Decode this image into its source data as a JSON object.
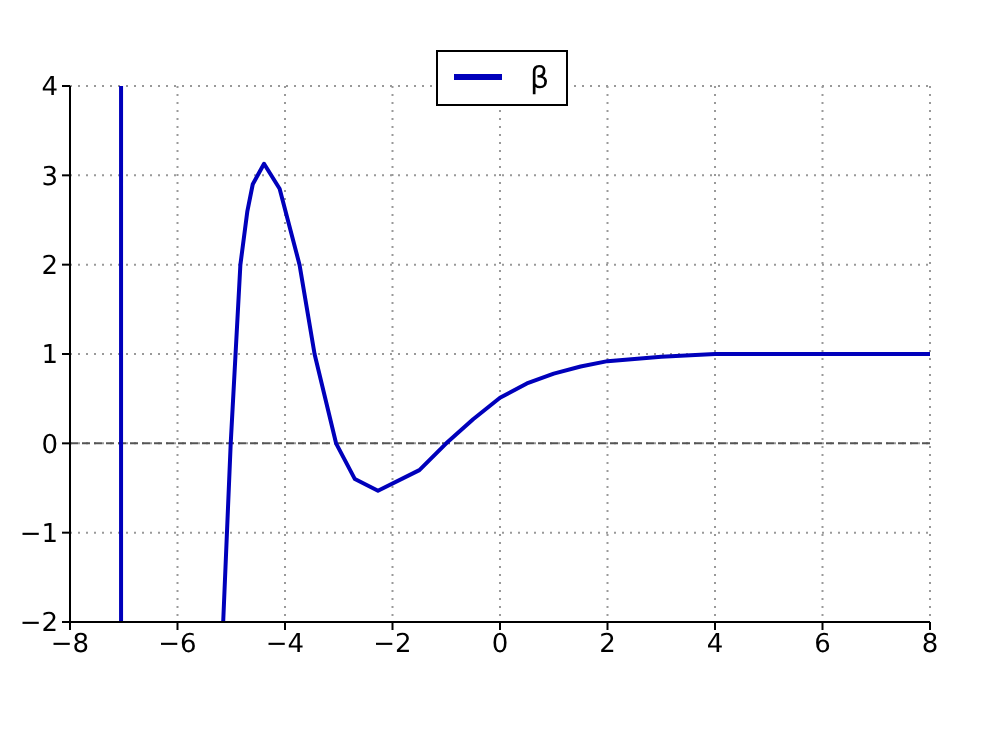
{
  "chart_data": {
    "type": "line",
    "x": [
      -7.05,
      -7.05,
      -6,
      -5.15,
      -5.01,
      -4.92,
      -4.83,
      -4.7,
      -4.6,
      -4.39,
      -4.1,
      -3.73,
      -3.45,
      -3.05,
      -2.7,
      -2.27,
      -1.5,
      -1.0,
      -0.5,
      0,
      0.5,
      1,
      1.5,
      2,
      3,
      4,
      6,
      8
    ],
    "series": [
      {
        "name": "β",
        "color": "#0000bb",
        "values": [
          4,
          -2,
          null,
          -2,
          0,
          1,
          2,
          2.6,
          2.9,
          3.13,
          2.85,
          2,
          1,
          0,
          -0.4,
          -0.53,
          -0.3,
          0,
          0.27,
          0.51,
          0.67,
          0.78,
          0.86,
          0.92,
          0.97,
          1.0,
          1.0,
          1.0
        ]
      }
    ],
    "xlim": [
      -8,
      8
    ],
    "ylim": [
      -2,
      4
    ],
    "xticks": [
      {
        "value": -8,
        "label": "−8"
      },
      {
        "value": -6,
        "label": "−6"
      },
      {
        "value": -4,
        "label": "−4"
      },
      {
        "value": -2,
        "label": "−2"
      },
      0,
      2,
      4,
      6,
      8
    ],
    "yticks": [
      {
        "value": -2,
        "label": "−2"
      },
      {
        "value": -1,
        "label": "−1"
      },
      0,
      1,
      2,
      3,
      4
    ],
    "grid": true,
    "legend": "top",
    "line_style": "solid",
    "marker": "none",
    "ref_lines": [
      {
        "axis": "y",
        "value": 0,
        "color": "#555555",
        "line_style": "dashed"
      }
    ]
  }
}
